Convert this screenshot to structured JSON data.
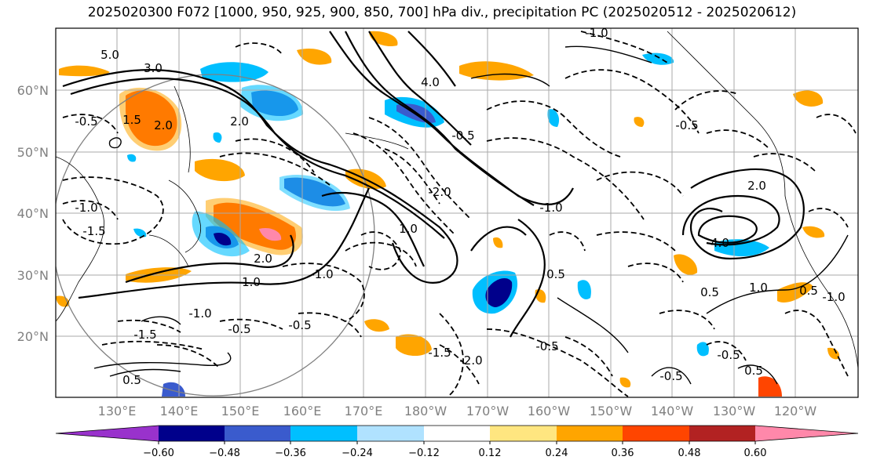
{
  "title": "2025020300 F072 [1000, 950, 925, 900, 850, 700] hPa div., precipitation PC (2025020512 - 2025020612)",
  "lat_labels": [
    "60°N",
    "50°N",
    "40°N",
    "30°N",
    "20°N"
  ],
  "lon_labels": [
    "130°E",
    "140°E",
    "150°E",
    "160°E",
    "170°E",
    "180°W",
    "170°W",
    "160°W",
    "150°W",
    "140°W",
    "130°W",
    "120°W"
  ],
  "contour_labels": [
    "5.0",
    "3.0",
    "2.0",
    "1.5",
    "-0.5",
    "-1.0",
    "-1.5",
    "2.0",
    "-2.0",
    "4.0",
    "1.0",
    "0.5",
    "-0.5",
    "-1.0",
    "-0.5",
    "-1.0",
    "-2.0",
    "-1.5",
    "2.0",
    "0.5",
    "-0.5",
    "-1.0",
    "4.0",
    "2.0",
    "-0.5",
    "0.5",
    "1.0",
    "-1.0",
    "-0.5",
    "-0.5",
    "-1.5",
    "1.0",
    "-1.0",
    "-0.5",
    "0.5",
    "0.5"
  ],
  "colorbar": {
    "ticks": [
      "−0.60",
      "−0.48",
      "−0.36",
      "−0.24",
      "−0.12",
      "0.12",
      "0.24",
      "0.36",
      "0.48",
      "0.60"
    ],
    "colors": [
      "#9932cc",
      "#00008b",
      "#3a5bcd",
      "#00bfff",
      "#b0e2ff",
      "#ffffff",
      "#ffe680",
      "#ffa500",
      "#ff4500",
      "#b22222",
      "#ff88aa"
    ]
  },
  "colors": {
    "contour": "#000000",
    "grid": "#aaaaaa",
    "circle": "#808080"
  }
}
